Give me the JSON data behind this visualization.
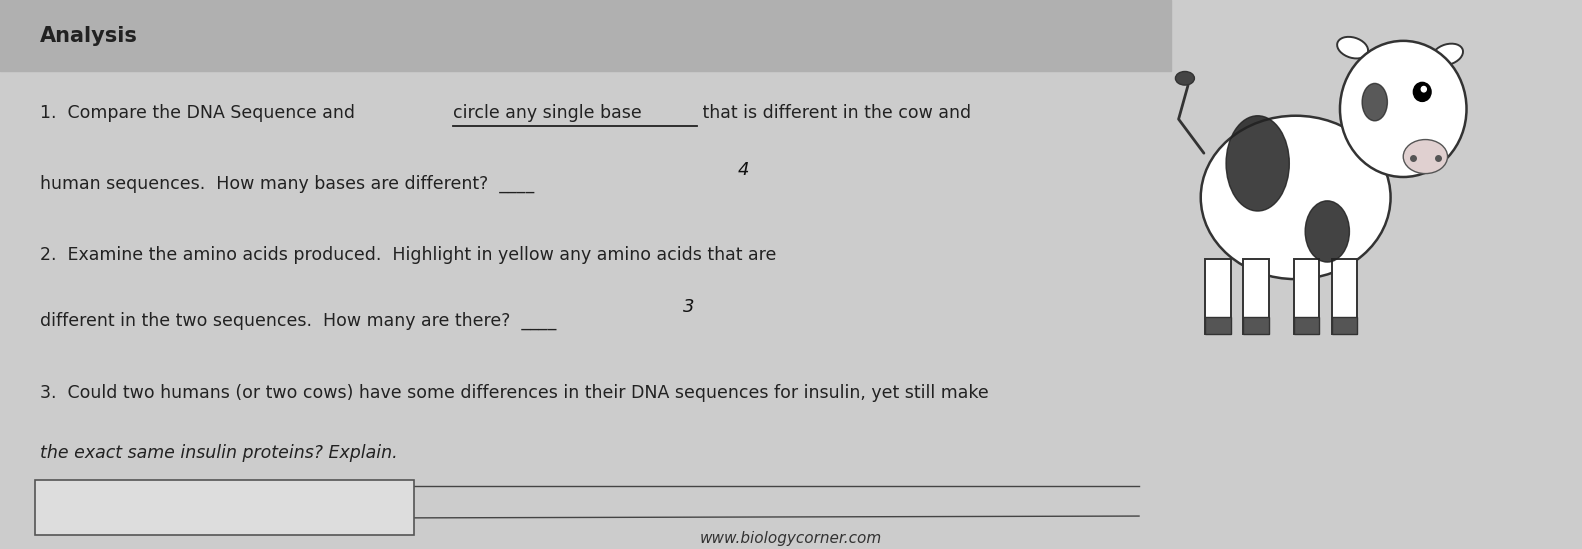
{
  "background_color": "#cccccc",
  "paper_color": "#e8e8e8",
  "title": "Analysis",
  "title_fontsize": 15,
  "text_color": "#222222",
  "text_fontsize": 12.5,
  "q1_before": "1.  Compare the DNA Sequence and ",
  "q1_underlined": "circle any single base",
  "q1_after": " that is different in the cow and",
  "q1_line2": "human sequences.  How many bases are different?  ____",
  "q1_answer": "4",
  "q2_line1": "2.  Examine the amino acids produced.  Highlight in yellow any amino acids that are",
  "q2_line2": "different in the two sequences.  How many are there?  ____",
  "q2_answer": "3",
  "q3_line1": "3.  Could two humans (or two cows) have some differences in their DNA sequences for insulin, yet still make",
  "q3_line2": "the exact same insulin proteins? Explain.",
  "footer": "www.biologycorner.com"
}
